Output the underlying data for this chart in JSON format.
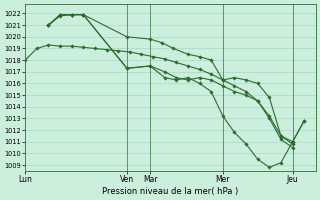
{
  "xlabel": "Pression niveau de la mer( hPa )",
  "bg_color": "#cceedd",
  "grid_color": "#aaddcc",
  "line_color": "#2d6b2d",
  "marker_color": "#2d6b2d",
  "ylim": [
    1008.5,
    1022.8
  ],
  "yticks": [
    1009,
    1010,
    1011,
    1012,
    1013,
    1014,
    1015,
    1016,
    1017,
    1018,
    1019,
    1020,
    1021,
    1022
  ],
  "day_labels": [
    "Lun",
    "Ven",
    "Mar",
    "Mer",
    "Jeu"
  ],
  "day_positions": [
    0.0,
    0.35,
    0.43,
    0.68,
    0.92
  ],
  "xlim": [
    0.0,
    1.0
  ],
  "series": {
    "s1_x": [
      0.0,
      0.04,
      0.08,
      0.12,
      0.16,
      0.2,
      0.24,
      0.28,
      0.32,
      0.36,
      0.4,
      0.44,
      0.48,
      0.52,
      0.56,
      0.6,
      0.64,
      0.68,
      0.72,
      0.76,
      0.8,
      0.84,
      0.88,
      0.92
    ],
    "s1_y": [
      1018.0,
      1019.0,
      1019.3,
      1019.2,
      1019.2,
      1019.1,
      1019.0,
      1018.9,
      1018.8,
      1018.7,
      1018.5,
      1018.3,
      1018.1,
      1017.8,
      1017.5,
      1017.2,
      1016.8,
      1016.3,
      1015.8,
      1015.3,
      1014.5,
      1013.0,
      1011.2,
      1010.5
    ],
    "s2_x": [
      0.08,
      0.12,
      0.16,
      0.2,
      0.35,
      0.43,
      0.47,
      0.51,
      0.56,
      0.6,
      0.64,
      0.68,
      0.72,
      0.76,
      0.8,
      0.84,
      0.88,
      0.92
    ],
    "s2_y": [
      1021.0,
      1021.8,
      1021.9,
      1021.9,
      1020.0,
      1019.8,
      1019.5,
      1019.0,
      1018.5,
      1018.3,
      1018.0,
      1016.3,
      1016.5,
      1016.3,
      1016.0,
      1014.8,
      1011.5,
      1010.8
    ],
    "s3_x": [
      0.08,
      0.12,
      0.16,
      0.2,
      0.35,
      0.43,
      0.48,
      0.52,
      0.56,
      0.6,
      0.64,
      0.68,
      0.72,
      0.76,
      0.8,
      0.84,
      0.88,
      0.92,
      0.96
    ],
    "s3_y": [
      1021.0,
      1021.9,
      1021.9,
      1021.9,
      1017.3,
      1017.5,
      1017.0,
      1016.5,
      1016.3,
      1016.5,
      1016.3,
      1015.8,
      1015.3,
      1015.0,
      1014.5,
      1013.2,
      1011.5,
      1011.0,
      1012.8
    ],
    "s4_x": [
      0.08,
      0.12,
      0.16,
      0.2,
      0.35,
      0.43,
      0.48,
      0.52,
      0.56,
      0.6,
      0.64,
      0.68,
      0.72,
      0.76,
      0.8,
      0.84,
      0.88,
      0.92,
      0.96
    ],
    "s4_y": [
      1021.0,
      1021.9,
      1021.9,
      1021.9,
      1017.3,
      1017.5,
      1016.5,
      1016.3,
      1016.5,
      1016.0,
      1015.3,
      1013.2,
      1011.8,
      1010.8,
      1009.5,
      1008.8,
      1009.2,
      1011.0,
      1012.8
    ]
  }
}
